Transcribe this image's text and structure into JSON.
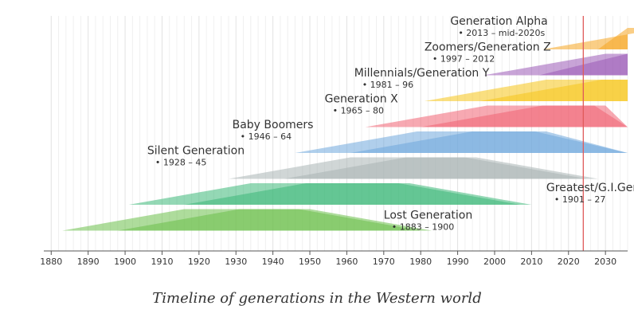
{
  "caption": "Timeline of generations in the Western world",
  "chart_data": {
    "type": "timeline",
    "xlim": [
      1878,
      2036
    ],
    "ticks": [
      1880,
      1890,
      1900,
      1910,
      1920,
      1930,
      1940,
      1950,
      1960,
      1970,
      1980,
      1990,
      2000,
      2010,
      2020,
      2030
    ],
    "current_year_marker": 2024,
    "marker_color": "#e05a5a",
    "generations": [
      {
        "name": "Generation Alpha",
        "years_label": "2013 – mid-2020s",
        "birth_start": 2013,
        "birth_end": 2025,
        "color": "#f5a623"
      },
      {
        "name": "Zoomers/Generation Z",
        "years_label": "1997 – 2012",
        "birth_start": 1997,
        "birth_end": 2012,
        "color": "#9b59b6"
      },
      {
        "name": "Millennials/Generation Y",
        "years_label": "1981 – 96",
        "birth_start": 1981,
        "birth_end": 1996,
        "color": "#f5c518"
      },
      {
        "name": "Generation X",
        "years_label": "1965 – 80",
        "birth_start": 1965,
        "birth_end": 1980,
        "color": "#f06272"
      },
      {
        "name": "Baby Boomers",
        "years_label": "1946 – 64",
        "birth_start": 1946,
        "birth_end": 1964,
        "color": "#6fa8dc"
      },
      {
        "name": "Silent Generation",
        "years_label": "1928 – 45",
        "birth_start": 1928,
        "birth_end": 1945,
        "color": "#aab4b4"
      },
      {
        "name": "Greatest/G.I.Generation",
        "years_label": "1901 – 27",
        "birth_start": 1901,
        "birth_end": 1927,
        "color": "#3cb878"
      },
      {
        "name": "Lost Generation",
        "years_label": "1883 – 1900",
        "birth_start": 1883,
        "birth_end": 1900,
        "color": "#6cc04a"
      }
    ]
  }
}
